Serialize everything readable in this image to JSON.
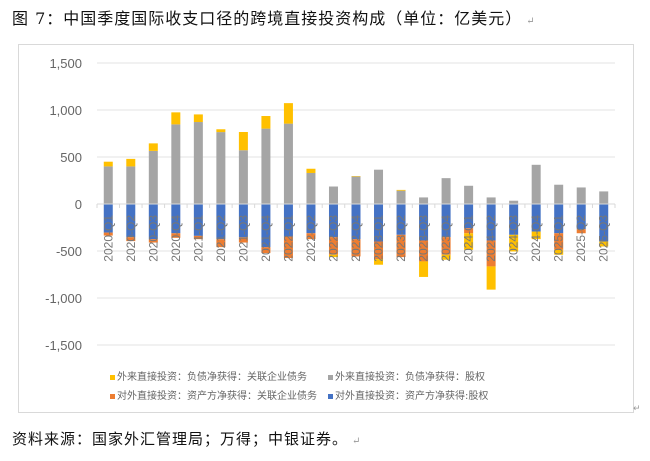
{
  "title": "图 7：中国季度国际收支口径的跨境直接投资构成（单位：亿美元）",
  "source": "资料来源：国家外汇管理局；万得；中银证券。",
  "paragraph_mark": "↵",
  "chart_data": {
    "type": "bar",
    "stacked": true,
    "title": "中国季度国际收支口径的跨境直接投资构成（单位：亿美元）",
    "xlabel": "",
    "ylabel": "亿美元",
    "ylim": [
      -1500,
      1500
    ],
    "yticks": [
      1500,
      1000,
      500,
      0,
      -500,
      -1000,
      -1500
    ],
    "ytick_labels": [
      "1,500",
      "1,000",
      "500",
      "0",
      "-500",
      "-1,000",
      "-1,500"
    ],
    "grid": true,
    "legend_position": "bottom",
    "categories": [
      "2020-Q1",
      "2020-Q2",
      "2020-Q3",
      "2020-Q4",
      "2021-Q1",
      "2021-Q2",
      "2021-Q3",
      "2021-Q4",
      "2022-Q1",
      "2022-Q2",
      "2022-Q3",
      "2022-Q4",
      "2023-Q1",
      "2023-Q2",
      "2023-Q3",
      "2023-Q4",
      "2024-Q1",
      "2024-Q2",
      "2024-Q3",
      "2024-Q4",
      "2025-Q1",
      "2025-Q2",
      "2025-Q3"
    ],
    "series": [
      {
        "name": "外来直接投资：负债净获得：股权",
        "color": "#a5a5a5",
        "values": [
          400,
          400,
          565,
          847,
          872,
          765,
          572,
          802,
          855,
          330,
          186,
          292,
          365,
          142,
          70,
          275,
          194,
          70,
          35,
          417,
          205,
          176,
          134
        ]
      },
      {
        "name": "外来直接投资：负债净获得：关联企业债务",
        "color": "#ffc000",
        "values": [
          50,
          80,
          80,
          128,
          81,
          30,
          194,
          134,
          218,
          45,
          -25,
          5,
          -60,
          8,
          -165,
          -53,
          -177,
          -247,
          -177,
          -81,
          -53,
          0,
          -53
        ]
      },
      {
        "name": "对外直接投资：资产方净获得：股权",
        "color": "#4472c4",
        "values": [
          -304,
          -353,
          -374,
          -311,
          -339,
          -374,
          -353,
          -459,
          -346,
          -311,
          -353,
          -374,
          -399,
          -328,
          -388,
          -353,
          -258,
          -388,
          -328,
          -293,
          -311,
          -268,
          -399
        ]
      },
      {
        "name": "对外直接投资：资产方净获得：关联企业债务",
        "color": "#ed7d31",
        "values": [
          -32,
          -42,
          -36,
          -49,
          -35,
          -85,
          -57,
          -63,
          -229,
          -63,
          -187,
          -184,
          -187,
          -237,
          -223,
          -187,
          -53,
          -276,
          0,
          0,
          -176,
          -43,
          0
        ]
      }
    ]
  },
  "legend": [
    {
      "label": "外来直接投资：负债净获得：关联企业债务",
      "color": "#ffc000"
    },
    {
      "label": "外来直接投资：负债净获得：股权",
      "color": "#a5a5a5"
    },
    {
      "label": "对外直接投资：资产方净获得：关联企业债务",
      "color": "#ed7d31"
    },
    {
      "label": "对外直接投资：资产方净获得:股权",
      "color": "#4472c4"
    }
  ]
}
